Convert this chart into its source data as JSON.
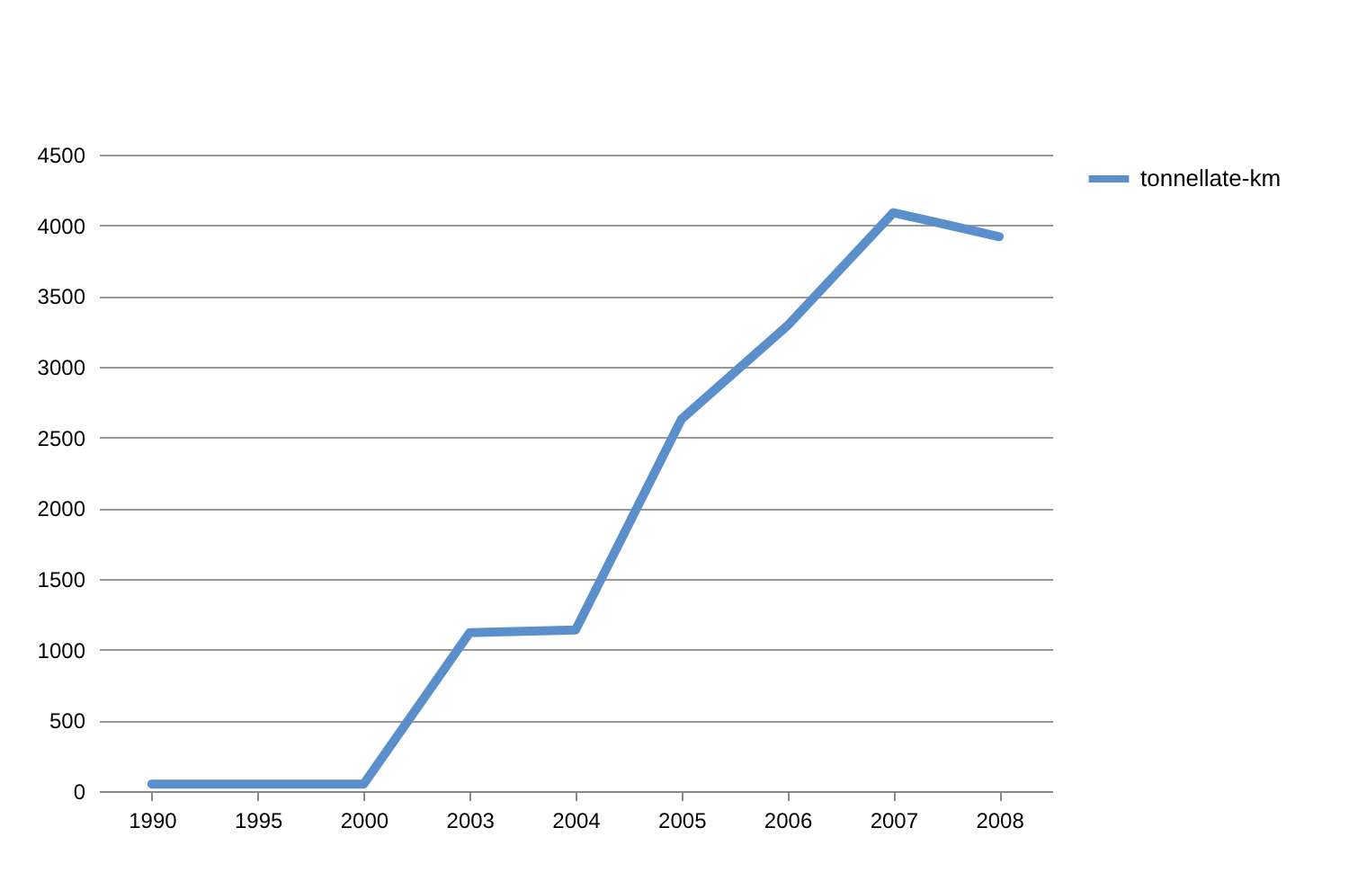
{
  "chart_data": {
    "type": "line",
    "categories": [
      "1990",
      "1995",
      "2000",
      "2003",
      "2004",
      "2005",
      "2006",
      "2007",
      "2008"
    ],
    "series": [
      {
        "name": "tonnellate-km",
        "color": "#5b8fcc",
        "values": [
          50,
          50,
          50,
          1120,
          1140,
          2630,
          3290,
          4090,
          3920
        ]
      }
    ],
    "ylim": [
      0,
      4500
    ],
    "yticks": [
      0,
      500,
      1000,
      1500,
      2000,
      2500,
      3000,
      3500,
      4000,
      4500
    ],
    "grid": "y",
    "legend": "right",
    "marker": "none",
    "line_style": "solid"
  }
}
